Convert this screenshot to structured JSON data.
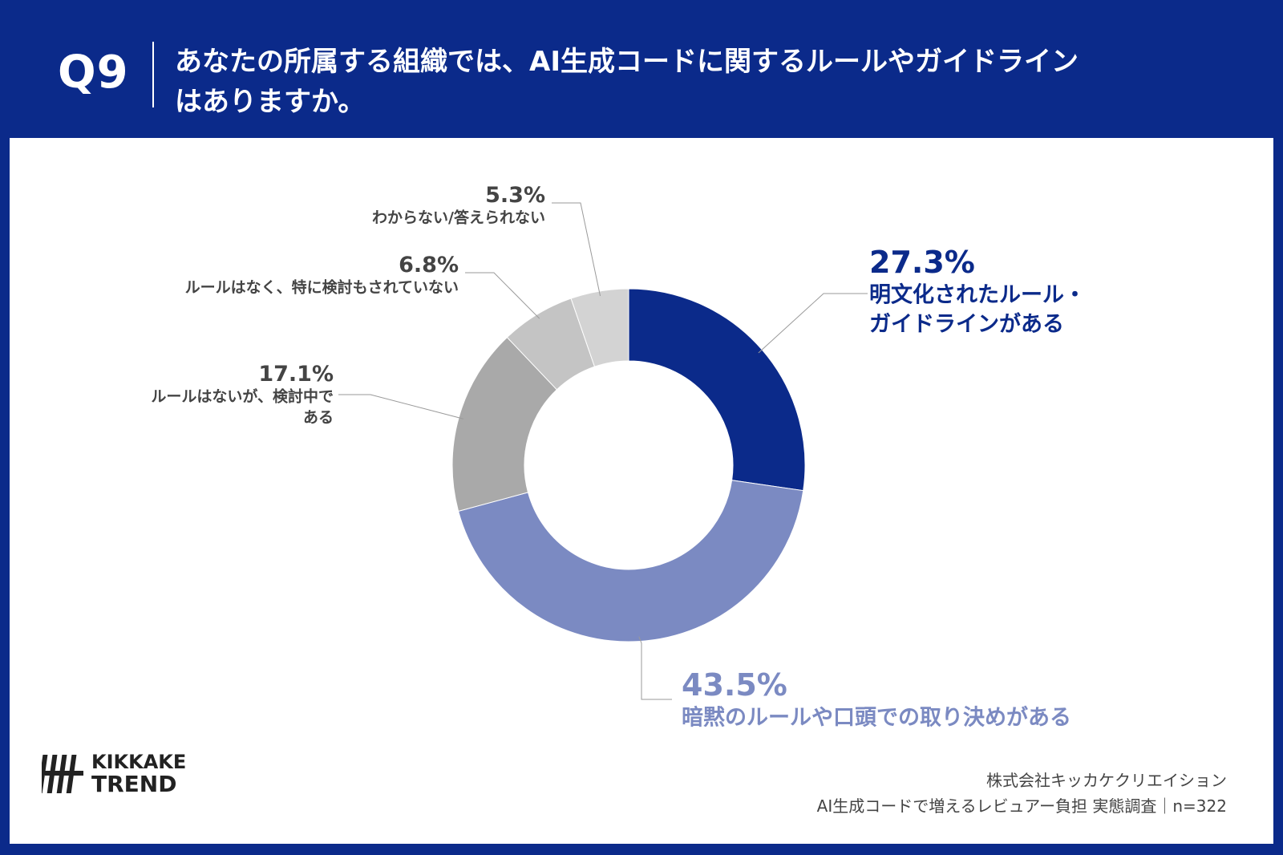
{
  "header": {
    "question_number": "Q9",
    "question_line1": "あなたの所属する組織では、AI生成コードに関するルールやガイドライン",
    "question_line2": "はありますか。"
  },
  "chart_data": {
    "type": "pie",
    "donut": true,
    "slices": [
      {
        "percent_label": "27.3%",
        "label_lines": [
          "明文化されたルール・",
          "ガイドラインがある"
        ],
        "value": 27.3,
        "color": "#0b2a8a"
      },
      {
        "percent_label": "43.5%",
        "label_lines": [
          "暗黙のルールや口頭での取り決めがある"
        ],
        "value": 43.5,
        "color": "#7b8ac2"
      },
      {
        "percent_label": "17.1%",
        "label_lines": [
          "ルールはないが、検討中で",
          "ある"
        ],
        "value": 17.1,
        "color": "#a9a9a9"
      },
      {
        "percent_label": "6.8%",
        "label_lines": [
          "ルールはなく、特に検討もされていない"
        ],
        "value": 6.8,
        "color": "#c4c4c4"
      },
      {
        "percent_label": "5.3%",
        "label_lines": [
          "わからない/答えられない"
        ],
        "value": 5.3,
        "color": "#d3d3d3"
      }
    ]
  },
  "logo": {
    "line1": "KIKKAKE",
    "line2": "TREND"
  },
  "footer": {
    "line1": "株式会社キッカケクリエイション",
    "line2": "AI生成コードで増えるレビュアー負担 実態調査｜n=322"
  }
}
